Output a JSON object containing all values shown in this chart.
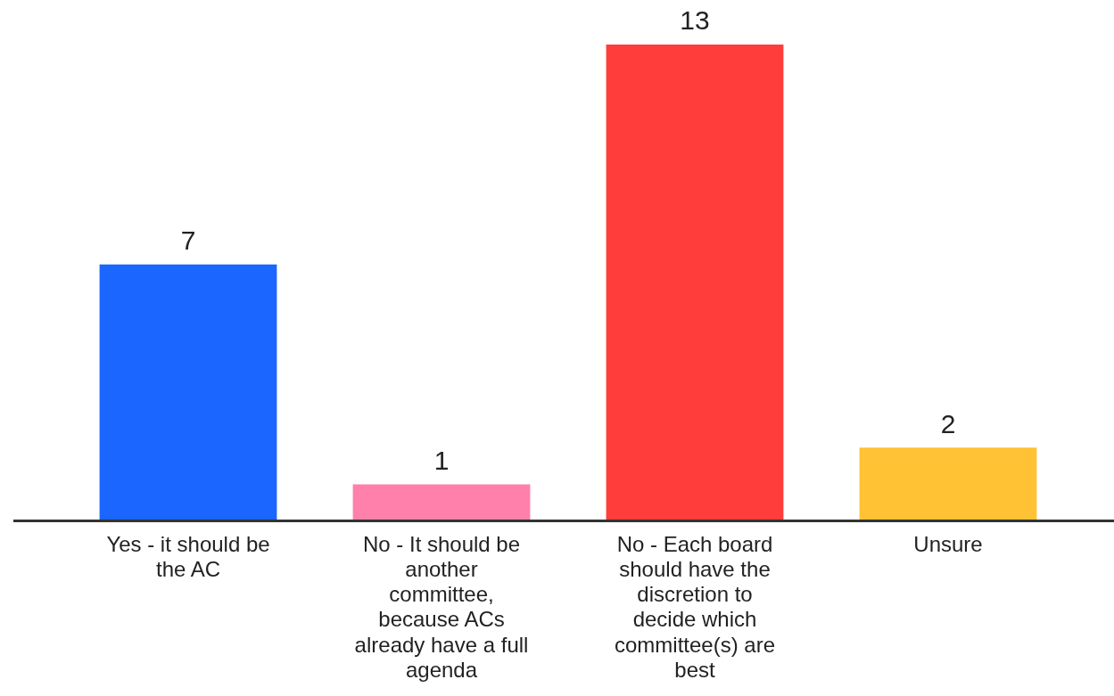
{
  "chart_data": {
    "type": "bar",
    "categories": [
      "Yes - it should be the AC",
      "No - It should be another committee, because ACs already have a full agenda",
      "No - Each board should have the discretion to decide which committee(s) are best",
      "Unsure"
    ],
    "values": [
      7,
      1,
      13,
      2
    ],
    "colors": [
      "#1a66ff",
      "#ff80aa",
      "#ff3d3a",
      "#ffc234"
    ],
    "data_labels": true,
    "relative": false,
    "grid": false,
    "legend": false
  }
}
